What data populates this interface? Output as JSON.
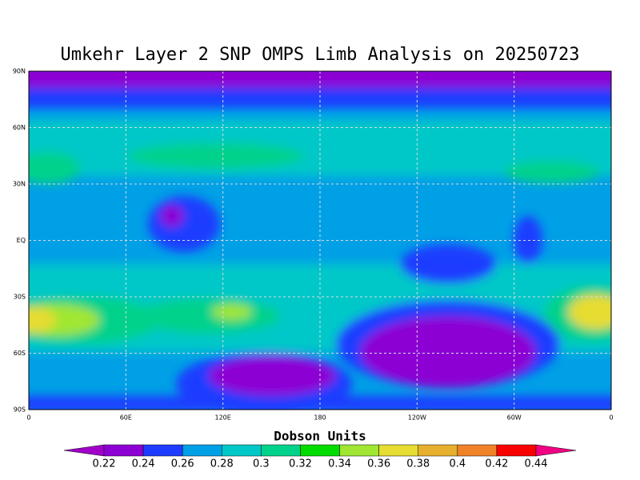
{
  "map": {
    "title": "Umkehr Layer 2 SNP OMPS Limb Analysis on 20250723",
    "lat_labels": [
      "90N",
      "60N",
      "30N",
      "EQ",
      "30S",
      "60S",
      "90S"
    ],
    "lon_labels": [
      "0",
      "60E",
      "120E",
      "180",
      "120W",
      "60W",
      "0"
    ]
  },
  "colorbar": {
    "title": "Dobson Units",
    "levels": [
      0.22,
      0.24,
      0.26,
      0.28,
      0.3,
      0.32,
      0.34,
      0.36,
      0.38,
      0.4,
      0.42,
      0.44
    ],
    "colors": [
      "#a000c8",
      "#8c00d4",
      "#1e3cff",
      "#00a0e6",
      "#00c8c8",
      "#00d28c",
      "#00dc00",
      "#a0e632",
      "#e6dc32",
      "#e6af2d",
      "#f08228",
      "#fa0000",
      "#f00082"
    ]
  }
}
